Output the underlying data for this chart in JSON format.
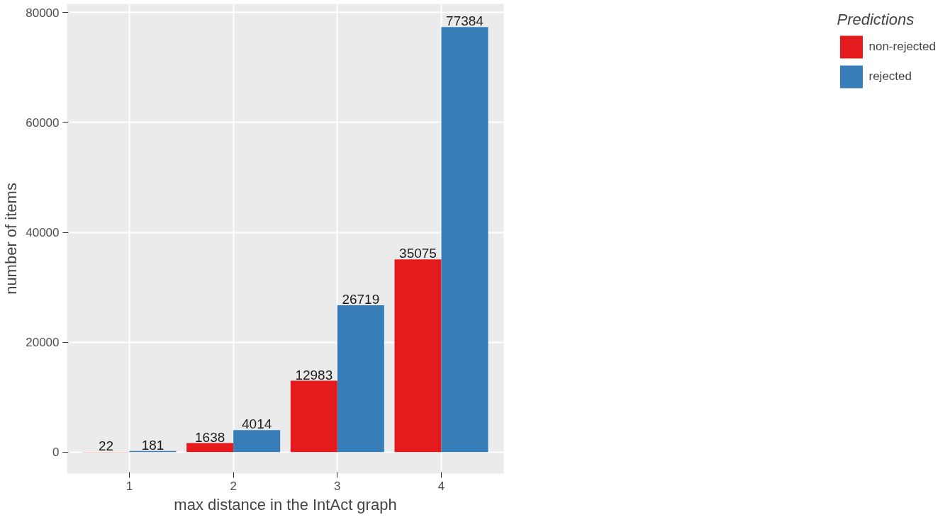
{
  "chart_data": {
    "type": "bar",
    "xlabel": "max distance in the IntAct graph",
    "ylabel": "number of items",
    "legend_title": "Predictions",
    "categories": [
      "1",
      "2",
      "3",
      "4"
    ],
    "series": [
      {
        "name": "non-rejected",
        "color": "#e41a1c",
        "values": [
          22,
          1638,
          12983,
          35075
        ]
      },
      {
        "name": "rejected",
        "color": "#377eb8",
        "values": [
          181,
          4014,
          26719,
          77384
        ]
      }
    ],
    "ylim": [
      -3900,
      81600
    ],
    "yticks": [
      0,
      20000,
      40000,
      60000,
      80000
    ],
    "grid": true,
    "legend": "right",
    "data_labels": true
  }
}
